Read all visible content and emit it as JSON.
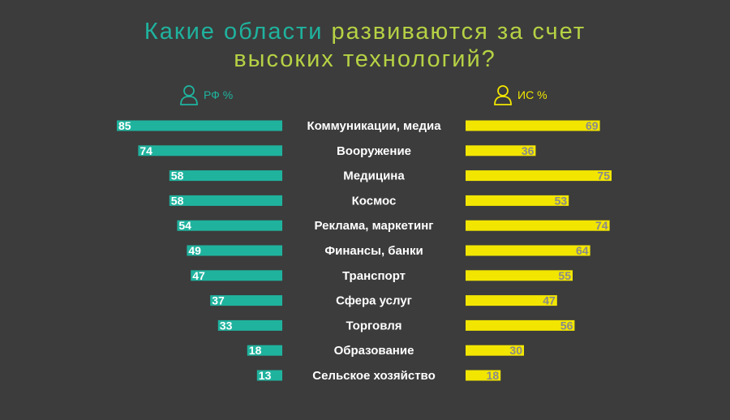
{
  "title": {
    "line1_part1": "Какие области",
    "line1_part2": "развиваются за счет",
    "line2": "высоких технологий?"
  },
  "legend": {
    "left_label": "РФ %",
    "right_label": "ИС %",
    "left_icon": "person-outline-icon",
    "right_icon": "person-outline-icon"
  },
  "colors": {
    "background": "#3c3c3c",
    "left_bars": "#1fb39e",
    "right_bars": "#f2e600",
    "left_value_text": "#ffffff",
    "right_value_text": "#8a8a8a"
  },
  "chart_data": {
    "type": "bar",
    "orientation": "horizontal-butterfly",
    "categories": [
      "Коммуникации, медиа",
      "Вооружение",
      "Медицина",
      "Космос",
      "Реклама, маркетинг",
      "Финансы, банки",
      "Транспорт",
      "Сфера услуг",
      "Торговля",
      "Образование",
      "Сельское хозяйство"
    ],
    "series": [
      {
        "name": "РФ %",
        "side": "left",
        "values": [
          85,
          74,
          58,
          58,
          54,
          49,
          47,
          37,
          33,
          18,
          13
        ]
      },
      {
        "name": "ИС %",
        "side": "right",
        "values": [
          69,
          36,
          75,
          53,
          74,
          64,
          55,
          47,
          56,
          30,
          18
        ]
      }
    ]
  }
}
